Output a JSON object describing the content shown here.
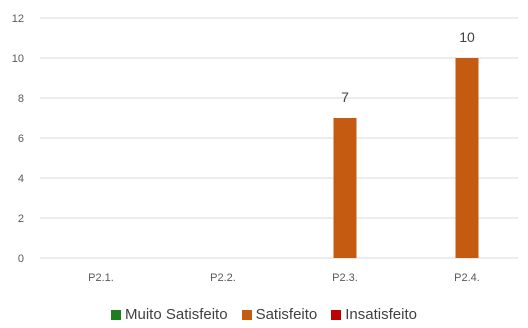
{
  "chart_data": {
    "type": "bar",
    "categories": [
      "P2.1.",
      "P2.2.",
      "P2.3.",
      "P2.4."
    ],
    "series": [
      {
        "name": "Muito Satisfeito",
        "color": "#1e7d1e",
        "values": [
          0,
          0,
          0,
          0
        ]
      },
      {
        "name": "Satisfeito",
        "color": "#c55a11",
        "values": [
          0,
          0,
          7,
          10
        ]
      },
      {
        "name": "Insatisfeito",
        "color": "#c00000",
        "values": [
          0,
          0,
          0,
          0
        ]
      }
    ],
    "data_labels": [
      null,
      null,
      "7",
      "10"
    ],
    "yticks": [
      "0",
      "2",
      "4",
      "6",
      "8",
      "10",
      "12"
    ],
    "ylim": [
      0,
      12
    ],
    "grid": true,
    "legend_position": "bottom",
    "title": "",
    "xlabel": "",
    "ylabel": ""
  }
}
